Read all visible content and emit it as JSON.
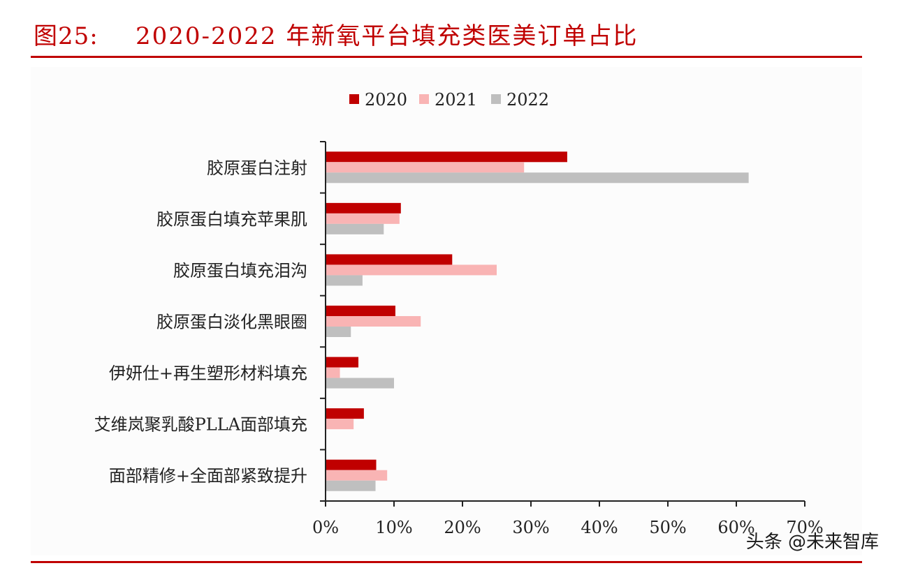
{
  "header": {
    "figure_label": "图25:",
    "title": "2020-2022 年新氧平台填充类医美订单占比"
  },
  "watermark": "头条 @未来智库",
  "chart_data": {
    "type": "bar",
    "orientation": "horizontal",
    "categories": [
      "胶原蛋白注射",
      "胶原蛋白填充苹果肌",
      "胶原蛋白填充泪沟",
      "胶原蛋白淡化黑眼圈",
      "伊妍仕+再生塑形材料填充",
      "艾维岚聚乳酸PLLA面部填充",
      "面部精修+全面部紧致提升"
    ],
    "series": [
      {
        "name": "2020",
        "color": "#c00000",
        "values": [
          35.3,
          11.0,
          18.5,
          10.2,
          4.8,
          5.6,
          7.4
        ]
      },
      {
        "name": "2021",
        "color": "#f9b4b4",
        "values": [
          29.0,
          10.8,
          25.0,
          13.9,
          2.1,
          4.1,
          9.0
        ]
      },
      {
        "name": "2022",
        "color": "#bfbfbf",
        "values": [
          61.8,
          8.5,
          5.4,
          3.7,
          10.0,
          0,
          7.3
        ]
      }
    ],
    "xlim": [
      0,
      70
    ],
    "xticks": [
      "0%",
      "10%",
      "20%",
      "30%",
      "40%",
      "50%",
      "60%",
      "70%"
    ],
    "legend_position": "top-center",
    "grid": false
  }
}
